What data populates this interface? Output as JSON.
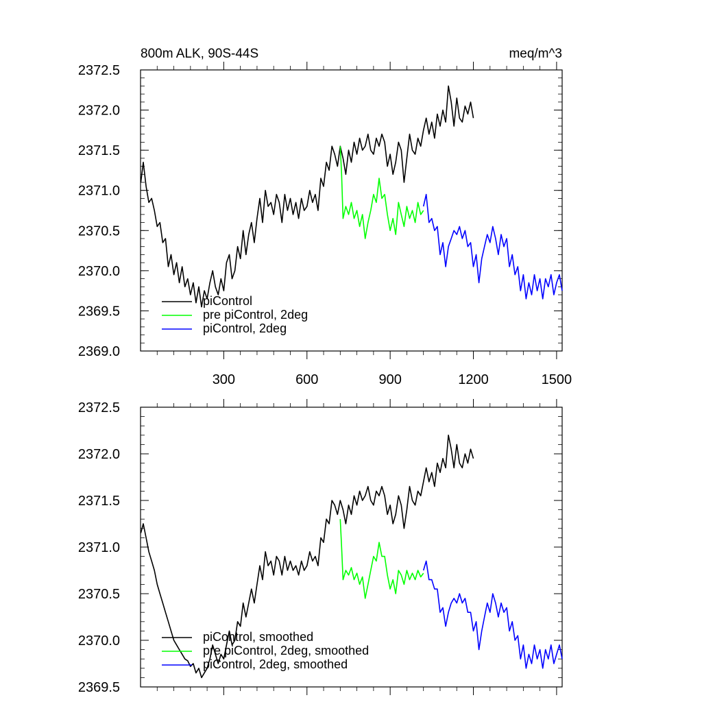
{
  "chart_data": [
    {
      "type": "line",
      "title": "800m ALK, 90S-44S",
      "units": "meq/m^3",
      "xlabel": "",
      "ylabel": "",
      "xlim": [
        0,
        1520
      ],
      "ylim": [
        2369.0,
        2372.5
      ],
      "x_ticks": [
        300,
        600,
        900,
        1200,
        1500
      ],
      "x_tick_labels": [
        "300",
        "600",
        "900",
        "1200",
        "1500"
      ],
      "y_ticks": [
        2369.0,
        2369.5,
        2370.0,
        2370.5,
        2371.0,
        2371.5,
        2372.0,
        2372.5
      ],
      "y_tick_labels": [
        "2369.0",
        "2369.5",
        "2370.0",
        "2370.5",
        "2371.0",
        "2371.5",
        "2372.0",
        "2372.5"
      ],
      "legend_position": "bottom-left",
      "series": [
        {
          "name": "piControl",
          "color": "#000000",
          "x": [
            1,
            10,
            20,
            30,
            40,
            50,
            60,
            70,
            80,
            90,
            100,
            110,
            120,
            130,
            140,
            150,
            160,
            170,
            180,
            190,
            200,
            210,
            220,
            230,
            240,
            250,
            260,
            270,
            280,
            290,
            300,
            310,
            320,
            330,
            340,
            350,
            360,
            370,
            380,
            390,
            400,
            410,
            420,
            430,
            440,
            450,
            460,
            470,
            480,
            490,
            500,
            510,
            520,
            530,
            540,
            550,
            560,
            570,
            580,
            590,
            600,
            610,
            620,
            630,
            640,
            650,
            660,
            670,
            680,
            690,
            700,
            710,
            720,
            730,
            740,
            750,
            760,
            770,
            780,
            790,
            800,
            810,
            820,
            830,
            840,
            850,
            860,
            870,
            880,
            890,
            900,
            910,
            920,
            930,
            940,
            950,
            960,
            970,
            980,
            990,
            1000,
            1010,
            1020,
            1030,
            1040,
            1050,
            1060,
            1070,
            1080,
            1090,
            1100,
            1110,
            1120,
            1130,
            1140,
            1150,
            1160,
            1170,
            1180,
            1190,
            1200
          ],
          "y": [
            2371.1,
            2371.35,
            2371.05,
            2370.85,
            2370.9,
            2370.75,
            2370.55,
            2370.6,
            2370.35,
            2370.4,
            2370.05,
            2370.2,
            2369.95,
            2370.1,
            2369.85,
            2370.05,
            2369.8,
            2369.9,
            2369.7,
            2369.85,
            2369.6,
            2369.8,
            2369.55,
            2369.75,
            2369.65,
            2369.85,
            2370.0,
            2369.8,
            2369.7,
            2369.9,
            2369.75,
            2370.1,
            2370.2,
            2369.9,
            2370.0,
            2370.3,
            2370.15,
            2370.5,
            2370.2,
            2370.45,
            2370.6,
            2370.35,
            2370.65,
            2370.9,
            2370.6,
            2371.0,
            2370.8,
            2370.85,
            2370.7,
            2370.95,
            2370.85,
            2370.6,
            2370.95,
            2370.75,
            2370.9,
            2370.7,
            2370.85,
            2370.65,
            2370.9,
            2370.75,
            2370.8,
            2371.0,
            2370.85,
            2370.95,
            2370.75,
            2371.15,
            2371.05,
            2371.35,
            2371.25,
            2371.55,
            2371.45,
            2371.3,
            2371.55,
            2371.4,
            2371.2,
            2371.5,
            2371.35,
            2371.6,
            2371.45,
            2371.65,
            2371.5,
            2371.55,
            2371.7,
            2371.5,
            2371.45,
            2371.65,
            2371.55,
            2371.7,
            2371.6,
            2371.3,
            2371.45,
            2371.2,
            2371.35,
            2371.6,
            2371.5,
            2371.1,
            2371.4,
            2371.7,
            2371.5,
            2371.45,
            2371.65,
            2371.55,
            2371.75,
            2371.9,
            2371.7,
            2371.85,
            2371.65,
            2371.95,
            2371.8,
            2372.0,
            2371.85,
            2372.3,
            2372.1,
            2371.8,
            2372.15,
            2371.9,
            2371.85,
            2372.05,
            2371.95,
            2372.1,
            2371.9
          ]
        },
        {
          "name": "pre piControl, 2deg",
          "color": "#00ff00",
          "x": [
            720,
            725,
            730,
            740,
            750,
            760,
            770,
            780,
            790,
            800,
            810,
            820,
            830,
            840,
            850,
            860,
            870,
            880,
            890,
            900,
            910,
            920,
            930,
            940,
            950,
            960,
            970,
            980,
            990,
            1000,
            1010,
            1020
          ],
          "y": [
            2371.55,
            2371.2,
            2370.65,
            2370.8,
            2370.7,
            2370.85,
            2370.65,
            2370.75,
            2370.55,
            2370.7,
            2370.4,
            2370.6,
            2370.75,
            2370.95,
            2370.85,
            2371.15,
            2370.9,
            2370.95,
            2370.7,
            2370.5,
            2370.65,
            2370.45,
            2370.85,
            2370.7,
            2370.55,
            2370.8,
            2370.65,
            2370.75,
            2370.6,
            2370.85,
            2370.7,
            2370.75
          ]
        },
        {
          "name": "piControl, 2deg",
          "color": "#0000ff",
          "x": [
            1020,
            1030,
            1040,
            1050,
            1060,
            1070,
            1080,
            1090,
            1100,
            1110,
            1120,
            1130,
            1140,
            1150,
            1160,
            1170,
            1180,
            1190,
            1200,
            1210,
            1220,
            1230,
            1240,
            1250,
            1260,
            1270,
            1280,
            1290,
            1300,
            1310,
            1320,
            1330,
            1340,
            1350,
            1360,
            1370,
            1380,
            1390,
            1400,
            1410,
            1420,
            1430,
            1440,
            1450,
            1460,
            1470,
            1480,
            1490,
            1500,
            1510,
            1520
          ],
          "y": [
            2370.8,
            2370.95,
            2370.6,
            2370.65,
            2370.5,
            2370.55,
            2370.2,
            2370.35,
            2370.05,
            2370.3,
            2370.4,
            2370.5,
            2370.45,
            2370.55,
            2370.4,
            2370.5,
            2370.3,
            2370.35,
            2370.05,
            2370.2,
            2369.85,
            2370.15,
            2370.3,
            2370.45,
            2370.35,
            2370.55,
            2370.4,
            2370.2,
            2370.45,
            2370.3,
            2370.4,
            2370.05,
            2370.2,
            2369.95,
            2370.05,
            2369.75,
            2369.95,
            2369.65,
            2369.85,
            2369.7,
            2369.95,
            2369.75,
            2369.9,
            2369.65,
            2369.9,
            2369.8,
            2369.95,
            2369.7,
            2369.85,
            2369.95,
            2369.75
          ]
        }
      ]
    },
    {
      "type": "line",
      "title": "",
      "xlabel": "",
      "ylabel": "",
      "xlim": [
        0,
        1520
      ],
      "ylim": [
        2369.5,
        2372.5
      ],
      "x_ticks": [
        300,
        600,
        900,
        1200,
        1500
      ],
      "y_ticks": [
        2369.5,
        2370.0,
        2370.5,
        2371.0,
        2371.5,
        2372.0,
        2372.5
      ],
      "y_tick_labels": [
        "2369.5",
        "2370.0",
        "2370.5",
        "2371.0",
        "2371.5",
        "2372.0",
        "2372.5"
      ],
      "legend_position": "bottom-left",
      "series": [
        {
          "name": "piControl, smoothed",
          "color": "#000000",
          "x": [
            1,
            10,
            20,
            30,
            40,
            50,
            60,
            70,
            80,
            90,
            100,
            110,
            120,
            130,
            140,
            150,
            160,
            170,
            180,
            190,
            200,
            210,
            220,
            230,
            240,
            250,
            260,
            270,
            280,
            290,
            300,
            310,
            320,
            330,
            340,
            350,
            360,
            370,
            380,
            390,
            400,
            410,
            420,
            430,
            440,
            450,
            460,
            470,
            480,
            490,
            500,
            510,
            520,
            530,
            540,
            550,
            560,
            570,
            580,
            590,
            600,
            610,
            620,
            630,
            640,
            650,
            660,
            670,
            680,
            690,
            700,
            710,
            720,
            730,
            740,
            750,
            760,
            770,
            780,
            790,
            800,
            810,
            820,
            830,
            840,
            850,
            860,
            870,
            880,
            890,
            900,
            910,
            920,
            930,
            940,
            950,
            960,
            970,
            980,
            990,
            1000,
            1010,
            1020,
            1030,
            1040,
            1050,
            1060,
            1070,
            1080,
            1090,
            1100,
            1110,
            1120,
            1130,
            1140,
            1150,
            1160,
            1170,
            1180,
            1190,
            1200
          ],
          "y": [
            2371.15,
            2371.25,
            2371.1,
            2370.95,
            2370.85,
            2370.75,
            2370.6,
            2370.5,
            2370.4,
            2370.3,
            2370.2,
            2370.1,
            2370.0,
            2369.95,
            2369.9,
            2369.85,
            2369.8,
            2369.78,
            2369.72,
            2369.75,
            2369.65,
            2369.7,
            2369.6,
            2369.65,
            2369.7,
            2369.8,
            2369.95,
            2369.85,
            2369.75,
            2369.85,
            2369.8,
            2369.95,
            2370.1,
            2369.95,
            2370.0,
            2370.2,
            2370.15,
            2370.4,
            2370.25,
            2370.4,
            2370.55,
            2370.4,
            2370.6,
            2370.8,
            2370.65,
            2370.95,
            2370.8,
            2370.85,
            2370.7,
            2370.9,
            2370.85,
            2370.7,
            2370.9,
            2370.75,
            2370.85,
            2370.75,
            2370.8,
            2370.7,
            2370.85,
            2370.75,
            2370.8,
            2370.95,
            2370.85,
            2370.9,
            2370.8,
            2371.1,
            2371.05,
            2371.3,
            2371.25,
            2371.5,
            2371.45,
            2371.35,
            2371.5,
            2371.4,
            2371.25,
            2371.45,
            2371.35,
            2371.55,
            2371.45,
            2371.6,
            2371.5,
            2371.55,
            2371.65,
            2371.5,
            2371.45,
            2371.6,
            2371.55,
            2371.65,
            2371.55,
            2371.35,
            2371.45,
            2371.25,
            2371.35,
            2371.55,
            2371.45,
            2371.2,
            2371.4,
            2371.65,
            2371.5,
            2371.45,
            2371.6,
            2371.55,
            2371.7,
            2371.85,
            2371.7,
            2371.8,
            2371.65,
            2371.9,
            2371.8,
            2371.95,
            2371.85,
            2372.2,
            2372.05,
            2371.85,
            2372.1,
            2371.9,
            2371.85,
            2372.0,
            2371.9,
            2372.05,
            2371.95
          ]
        },
        {
          "name": "pre piControl, 2deg, smoothed",
          "color": "#00ff00",
          "x": [
            720,
            725,
            730,
            740,
            750,
            760,
            770,
            780,
            790,
            800,
            810,
            820,
            830,
            840,
            850,
            860,
            870,
            880,
            890,
            900,
            910,
            920,
            930,
            940,
            950,
            960,
            970,
            980,
            990,
            1000,
            1010,
            1020
          ],
          "y": [
            2371.3,
            2371.0,
            2370.65,
            2370.75,
            2370.7,
            2370.78,
            2370.65,
            2370.72,
            2370.6,
            2370.68,
            2370.45,
            2370.6,
            2370.75,
            2370.9,
            2370.85,
            2371.05,
            2370.9,
            2370.9,
            2370.7,
            2370.55,
            2370.65,
            2370.5,
            2370.75,
            2370.7,
            2370.6,
            2370.75,
            2370.65,
            2370.72,
            2370.65,
            2370.75,
            2370.68,
            2370.72
          ]
        },
        {
          "name": "piControl, 2deg, smoothed",
          "color": "#0000ff",
          "x": [
            1020,
            1030,
            1040,
            1050,
            1060,
            1070,
            1080,
            1090,
            1100,
            1110,
            1120,
            1130,
            1140,
            1150,
            1160,
            1170,
            1180,
            1190,
            1200,
            1210,
            1220,
            1230,
            1240,
            1250,
            1260,
            1270,
            1280,
            1290,
            1300,
            1310,
            1320,
            1330,
            1340,
            1350,
            1360,
            1370,
            1380,
            1390,
            1400,
            1410,
            1420,
            1430,
            1440,
            1450,
            1460,
            1470,
            1480,
            1490,
            1500,
            1510,
            1520
          ],
          "y": [
            2370.75,
            2370.85,
            2370.65,
            2370.65,
            2370.55,
            2370.55,
            2370.3,
            2370.35,
            2370.15,
            2370.3,
            2370.4,
            2370.45,
            2370.4,
            2370.5,
            2370.4,
            2370.45,
            2370.3,
            2370.3,
            2370.1,
            2370.2,
            2369.9,
            2370.1,
            2370.25,
            2370.4,
            2370.3,
            2370.5,
            2370.4,
            2370.25,
            2370.4,
            2370.3,
            2370.35,
            2370.1,
            2370.2,
            2370.0,
            2370.05,
            2369.8,
            2369.95,
            2369.7,
            2369.85,
            2369.75,
            2369.95,
            2369.8,
            2369.9,
            2369.7,
            2369.9,
            2369.8,
            2369.95,
            2369.75,
            2369.85,
            2369.95,
            2369.8
          ]
        }
      ]
    }
  ]
}
